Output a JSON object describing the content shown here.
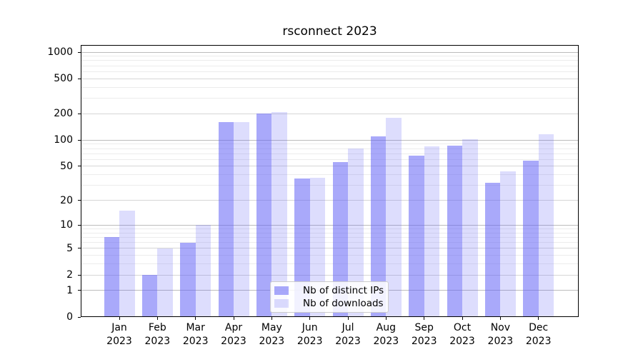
{
  "figure": {
    "background": "#ffffff"
  },
  "chart_data": {
    "type": "bar",
    "title": "rsconnect 2023",
    "xlabel": "",
    "ylabel": "",
    "categories": [
      "Jan",
      "Feb",
      "Mar",
      "Apr",
      "May",
      "Jun",
      "Jul",
      "Aug",
      "Sep",
      "Oct",
      "Nov",
      "Dec"
    ],
    "category_year": "2023",
    "series": [
      {
        "name": "Nb of distinct IPs",
        "color": "rgba(99,99,245,0.55)",
        "values": [
          7,
          2,
          6,
          160,
          200,
          36,
          56,
          110,
          66,
          87,
          32,
          58
        ]
      },
      {
        "name": "Nb of downloads",
        "color": "rgba(99,99,245,0.22)",
        "values": [
          15,
          5,
          10,
          160,
          210,
          37,
          80,
          180,
          84,
          102,
          44,
          117
        ]
      }
    ],
    "yscale": "log1p",
    "yticks": [
      0,
      1,
      2,
      5,
      10,
      20,
      50,
      100,
      200,
      500,
      1000
    ],
    "ylim": [
      0,
      1200
    ],
    "grid": {
      "orientation": "horizontal",
      "minor_color": "#ececec",
      "labeled_minor_color": "#d6d6d6",
      "major_color": "#bcbcbc"
    },
    "legend": {
      "position": "lower center"
    }
  }
}
